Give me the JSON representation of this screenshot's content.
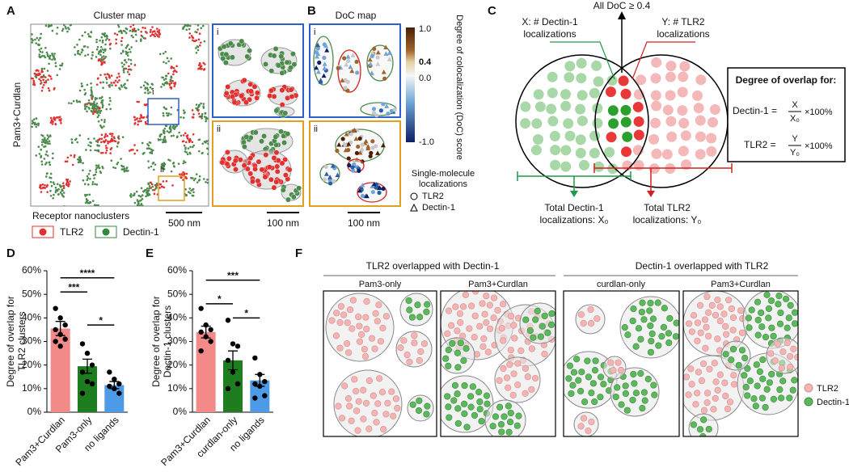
{
  "panel_labels": [
    "A",
    "B",
    "C",
    "D",
    "E",
    "F"
  ],
  "panel_a": {
    "title": "Cluster map",
    "condition": "Pam3+Curdlan",
    "inset_labels": [
      "i",
      "ii"
    ],
    "scale_bars": [
      "500 nm",
      "100 nm"
    ],
    "legend_title": "Receptor nanoclusters",
    "legend": [
      "TLR2",
      "Dectin-1"
    ]
  },
  "panel_b": {
    "title": "DoC map",
    "inset_labels": [
      "i",
      "ii"
    ],
    "colorbar_label": "Degree of colocalization (DoC) score",
    "colorbar_ticks": [
      "1.0",
      "0.4",
      "0.0",
      "-1.0"
    ],
    "legend_title": [
      "Single-molecule",
      "localizations"
    ],
    "legend": [
      "TLR2",
      "Dectin-1"
    ],
    "scale_bar": "100 nm"
  },
  "panel_c": {
    "x_label": [
      "X: # Dectin-1",
      "localizations"
    ],
    "center_label": "All DoC ≥ 0.4",
    "y_label": [
      "Y: # TLR2",
      "localizations"
    ],
    "total_x": [
      "Total Dectin-1",
      "localizations: X₀"
    ],
    "total_y": [
      "Total TLR2",
      "localizations: Y₀"
    ],
    "box_title": "Degree of overlap for:",
    "formula_dectin": {
      "name": "Dectin-1 =",
      "num": "X",
      "den": "X₀",
      "factor": "×100%"
    },
    "formula_tlr2": {
      "name": "TLR2 =",
      "num": "Y",
      "den": "Y₀",
      "factor": "×100%"
    }
  },
  "chart_data": [
    {
      "type": "bar",
      "ylabel": [
        "Degree of overlap for",
        "TLR2 clusters"
      ],
      "categories": [
        "Pam3+Curdlan",
        "Pam3-only",
        "no ligands"
      ],
      "values": [
        35.5,
        19.5,
        11.5
      ],
      "errors": [
        3,
        3,
        1.5
      ],
      "points": [
        [
          44,
          40,
          37,
          35,
          33,
          31,
          30,
          28
        ],
        [
          29,
          25,
          20,
          17,
          13,
          12,
          8
        ],
        [
          17,
          14,
          12,
          11,
          10,
          8
        ]
      ],
      "colors": [
        "#f28a8a",
        "#1e7d1e",
        "#4d9be6"
      ],
      "ylim": [
        0,
        60
      ],
      "yticks": [
        {
          "value": 0,
          "label": "0%"
        },
        {
          "value": 10,
          "label": "10%"
        },
        {
          "value": 20,
          "label": "20%"
        },
        {
          "value": 30,
          "label": "30%"
        },
        {
          "value": 40,
          "label": "40%"
        },
        {
          "value": 50,
          "label": "50%"
        },
        {
          "value": 60,
          "label": "60%"
        }
      ],
      "annotations": [
        "***",
        "****",
        "*"
      ]
    },
    {
      "type": "bar",
      "ylabel": [
        "Degree of overlap for",
        "Dectin-1 clusters"
      ],
      "categories": [
        "Pam3+Curdlan",
        "curdlan-only",
        "no ligands"
      ],
      "values": [
        34,
        22,
        13.5
      ],
      "errors": [
        2.5,
        4,
        2.5
      ],
      "points": [
        [
          44,
          37,
          35,
          34,
          32,
          30,
          26
        ],
        [
          39,
          29,
          28,
          22,
          17,
          12,
          10
        ],
        [
          23,
          16,
          13,
          12,
          11,
          7,
          6
        ]
      ],
      "colors": [
        "#f28a8a",
        "#1e7d1e",
        "#4d9be6"
      ],
      "ylim": [
        0,
        60
      ],
      "yticks": [
        {
          "value": 0,
          "label": "0%"
        },
        {
          "value": 10,
          "label": "10%"
        },
        {
          "value": 20,
          "label": "20%"
        },
        {
          "value": 30,
          "label": "30%"
        },
        {
          "value": 40,
          "label": "40%"
        },
        {
          "value": 50,
          "label": "50%"
        },
        {
          "value": 60,
          "label": "60%"
        }
      ],
      "annotations": [
        "*",
        "***",
        "*"
      ]
    }
  ],
  "panel_f": {
    "headers": [
      "TLR2 overlapped with Dectin-1",
      "Dectin-1 overlapped with TLR2"
    ],
    "subtitles": [
      "Pam3-only",
      "Pam3+Curdlan",
      "curdlan-only",
      "Pam3+Curdlan"
    ],
    "legend": [
      "TLR2",
      "Dectin-1"
    ]
  }
}
